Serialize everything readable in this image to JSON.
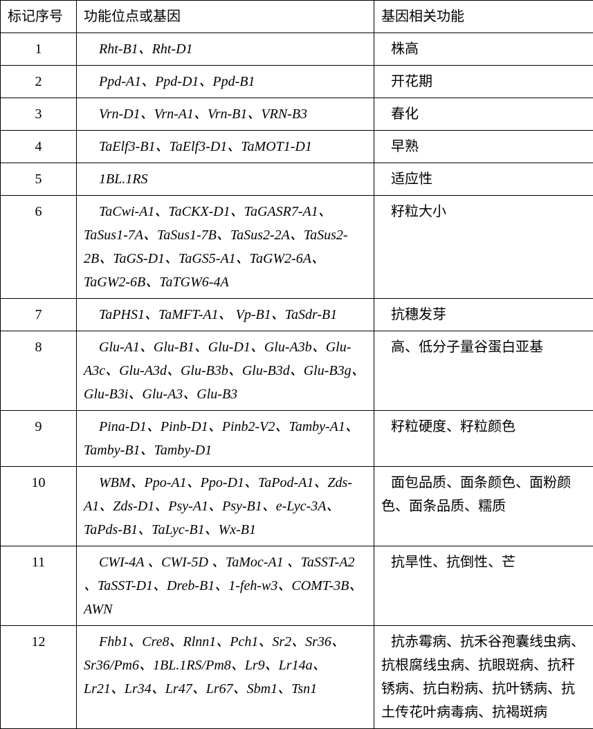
{
  "headers": {
    "col1": "标记序号",
    "col2": "功能位点或基因",
    "col3": "基因相关功能"
  },
  "rows": [
    {
      "n": "1",
      "genes": "Rht-B1、Rht-D1",
      "func": "株高"
    },
    {
      "n": "2",
      "genes": "Ppd-A1、Ppd-D1、Ppd-B1",
      "func": "开花期"
    },
    {
      "n": "3",
      "genes": "Vrn-D1、Vrn-A1、Vrn-B1、VRN-B3",
      "func": "春化"
    },
    {
      "n": "4",
      "genes": "TaElf3-B1、TaElf3-D1、TaMOT1-D1",
      "func": "早熟"
    },
    {
      "n": "5",
      "genes": "1BL.1RS",
      "func": "适应性"
    },
    {
      "n": "6",
      "genes": "TaCwi-A1、TaCKX-D1、TaGASR7-A1、TaSus1-7A、TaSus1-7B、TaSus2-2A、TaSus2-2B、TaGS-D1、TaGS5-A1、TaGW2-6A、TaGW2-6B、TaTGW6-4A",
      "func": "籽粒大小"
    },
    {
      "n": "7",
      "genes": "TaPHS1、TaMFT-A1、 Vp-B1、TaSdr-B1",
      "func": "抗穗发芽"
    },
    {
      "n": "8",
      "genes": "Glu-A1、Glu-B1、Glu-D1、Glu-A3b、Glu-A3c、Glu-A3d、Glu-B3b、Glu-B3d、Glu-B3g、Glu-B3i、Glu-A3、Glu-B3",
      "func": "高、低分子量谷蛋白亚基"
    },
    {
      "n": "9",
      "genes": "Pina-D1、Pinb-D1、Pinb2-V2、Tamby-A1、Tamby-B1、Tamby-D1",
      "func": "籽粒硬度、籽粒颜色"
    },
    {
      "n": "10",
      "genes": "WBM、Ppo-A1、Ppo-D1、TaPod-A1、Zds-A1、Zds-D1、Psy-A1、Psy-B1、e-Lyc-3A、TaPds-B1、TaLyc-B1、Wx-B1",
      "func": "面包品质、面条颜色、面粉颜色、面条品质、糯质"
    },
    {
      "n": "11",
      "genes": "CWI-4A 、CWI-5D 、TaMoc-A1 、TaSST-A2 、TaSST-D1、Dreb-B1、1-feh-w3、COMT-3B、AWN",
      "func": "抗旱性、抗倒性、芒"
    },
    {
      "n": "12",
      "genes": "Fhb1、Cre8、Rlnn1、Pch1、Sr2、Sr36、Sr36/Pm6、1BL.1RS/Pm8、Lr9、Lr14a、Lr21、Lr34、Lr47、Lr67、Sbm1、Tsn1",
      "func": "抗赤霉病、抗禾谷孢囊线虫病、抗根腐线虫病、抗眼斑病、抗秆锈病、抗白粉病、抗叶锈病、抗土传花叶病毒病、抗褐斑病"
    }
  ]
}
